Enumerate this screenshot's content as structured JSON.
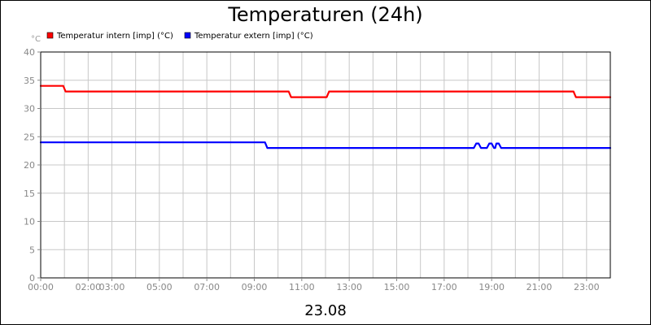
{
  "chart_data": {
    "type": "line",
    "title": "Temperaturen (24h)",
    "ylabel": "°C",
    "xlabel": "23.08",
    "ylim": [
      0,
      40
    ],
    "xlim": [
      0,
      24
    ],
    "y_ticks": [
      "0",
      "5",
      "10",
      "15",
      "20",
      "25",
      "30",
      "35",
      "40"
    ],
    "x_ticks": [
      {
        "x": 0,
        "label": "00:00"
      },
      {
        "x": 2,
        "label": "02:00"
      },
      {
        "x": 3,
        "label": "03:00"
      },
      {
        "x": 5,
        "label": "05:00"
      },
      {
        "x": 7,
        "label": "07:00"
      },
      {
        "x": 9,
        "label": "09:00"
      },
      {
        "x": 11,
        "label": "11:00"
      },
      {
        "x": 13,
        "label": "13:00"
      },
      {
        "x": 15,
        "label": "15:00"
      },
      {
        "x": 17,
        "label": "17:00"
      },
      {
        "x": 19,
        "label": "19:00"
      },
      {
        "x": 21,
        "label": "21:00"
      },
      {
        "x": 23,
        "label": "23:00"
      }
    ],
    "grid": true,
    "legend_position": "top-left",
    "series": [
      {
        "name": "Temperatur intern [imp] (°C)",
        "color": "#ff0000",
        "points": [
          [
            0,
            34
          ],
          [
            0.95,
            34
          ],
          [
            1.05,
            33
          ],
          [
            10.45,
            33
          ],
          [
            10.55,
            32
          ],
          [
            12.05,
            32
          ],
          [
            12.15,
            33
          ],
          [
            22.45,
            33
          ],
          [
            22.55,
            32
          ],
          [
            24,
            32
          ]
        ]
      },
      {
        "name": "Temperatur extern [imp] (°C)",
        "color": "#0000ff",
        "points": [
          [
            0,
            24
          ],
          [
            9.45,
            24
          ],
          [
            9.55,
            23
          ],
          [
            18.25,
            23
          ],
          [
            18.35,
            23.8
          ],
          [
            18.45,
            23.8
          ],
          [
            18.55,
            23
          ],
          [
            18.8,
            23
          ],
          [
            18.9,
            23.8
          ],
          [
            19.0,
            23.8
          ],
          [
            19.1,
            23
          ],
          [
            19.15,
            23
          ],
          [
            19.2,
            23.8
          ],
          [
            19.3,
            23.8
          ],
          [
            19.4,
            23
          ],
          [
            24,
            23
          ]
        ]
      }
    ]
  }
}
